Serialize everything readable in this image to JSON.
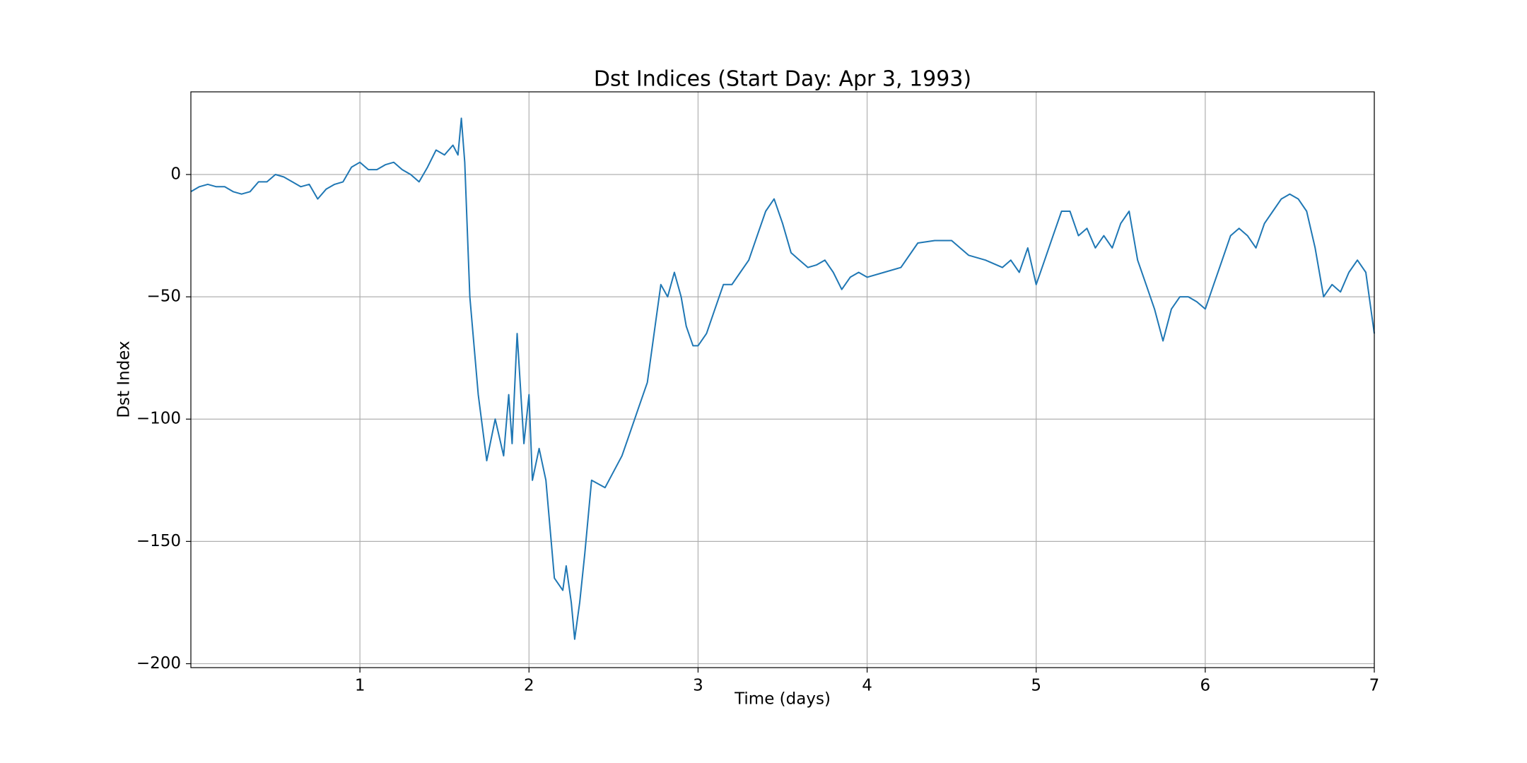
{
  "chart_data": {
    "type": "line",
    "title": "Dst Indices (Start Day: Apr 3, 1993)",
    "x_label": "Time (days)",
    "y_label": "Dst Index",
    "x": [
      0,
      0.05,
      0.1,
      0.15,
      0.2,
      0.25,
      0.3,
      0.35,
      0.4,
      0.45,
      0.5,
      0.55,
      0.6,
      0.65,
      0.7,
      0.75,
      0.8,
      0.85,
      0.9,
      0.95,
      1.0,
      1.05,
      1.1,
      1.15,
      1.2,
      1.25,
      1.3,
      1.35,
      1.4,
      1.45,
      1.5,
      1.55,
      1.58,
      1.6,
      1.62,
      1.65,
      1.7,
      1.75,
      1.8,
      1.85,
      1.88,
      1.9,
      1.93,
      1.97,
      2.0,
      2.02,
      2.06,
      2.1,
      2.15,
      2.2,
      2.22,
      2.25,
      2.27,
      2.3,
      2.33,
      2.37,
      2.45,
      2.55,
      2.6,
      2.65,
      2.7,
      2.75,
      2.78,
      2.82,
      2.86,
      2.9,
      2.93,
      2.97,
      3.0,
      3.05,
      3.1,
      3.15,
      3.2,
      3.25,
      3.3,
      3.35,
      3.4,
      3.45,
      3.5,
      3.55,
      3.6,
      3.65,
      3.7,
      3.75,
      3.8,
      3.85,
      3.9,
      3.95,
      4.0,
      4.1,
      4.2,
      4.3,
      4.4,
      4.5,
      4.6,
      4.7,
      4.8,
      4.85,
      4.9,
      4.95,
      5.0,
      5.05,
      5.1,
      5.15,
      5.2,
      5.25,
      5.3,
      5.35,
      5.4,
      5.45,
      5.5,
      5.55,
      5.6,
      5.65,
      5.7,
      5.75,
      5.8,
      5.85,
      5.9,
      5.95,
      6.0,
      6.05,
      6.1,
      6.15,
      6.2,
      6.25,
      6.3,
      6.35,
      6.4,
      6.45,
      6.5,
      6.55,
      6.6,
      6.65,
      6.7,
      6.75,
      6.8,
      6.85,
      6.9,
      6.95,
      7.0
    ],
    "series": [
      {
        "name": "Dst",
        "color": "#1f77b4",
        "values": [
          -7,
          -5,
          -4,
          -5,
          -5,
          -7,
          -8,
          -7,
          -3,
          -3,
          0,
          -1,
          -3,
          -5,
          -4,
          -10,
          -6,
          -4,
          -3,
          3,
          5,
          2,
          2,
          4,
          5,
          2,
          0,
          -3,
          3,
          10,
          8,
          12,
          8,
          23,
          5,
          -50,
          -90,
          -117,
          -100,
          -115,
          -90,
          -110,
          -65,
          -110,
          -90,
          -125,
          -112,
          -125,
          -165,
          -170,
          -160,
          -175,
          -190,
          -175,
          -155,
          -125,
          -128,
          -115,
          -105,
          -95,
          -85,
          -60,
          -45,
          -50,
          -40,
          -50,
          -62,
          -70,
          -70,
          -65,
          -55,
          -45,
          -45,
          -40,
          -35,
          -25,
          -15,
          -10,
          -20,
          -32,
          -35,
          -38,
          -37,
          -35,
          -40,
          -47,
          -42,
          -40,
          -42,
          -40,
          -38,
          -28,
          -27,
          -27,
          -33,
          -35,
          -38,
          -35,
          -40,
          -30,
          -45,
          -35,
          -25,
          -15,
          -15,
          -25,
          -22,
          -30,
          -25,
          -30,
          -20,
          -15,
          -35,
          -45,
          -55,
          -68,
          -55,
          -50,
          -50,
          -52,
          -55,
          -45,
          -35,
          -25,
          -22,
          -25,
          -30,
          -20,
          -15,
          -10,
          -8,
          -10,
          -15,
          -30,
          -50,
          -45,
          -48,
          -40,
          -35,
          -40,
          -65
        ]
      }
    ],
    "xlim": [
      0,
      7
    ],
    "ylim": [
      -201.6,
      33.8
    ],
    "xticks": [
      1,
      2,
      3,
      4,
      5,
      6,
      7
    ],
    "yticks": [
      0,
      {
        "value": -50,
        "label": "−50"
      },
      {
        "value": -100,
        "label": "−100"
      },
      {
        "value": -150,
        "label": "−150"
      },
      {
        "value": -200,
        "label": "−200"
      }
    ],
    "grid": true
  }
}
